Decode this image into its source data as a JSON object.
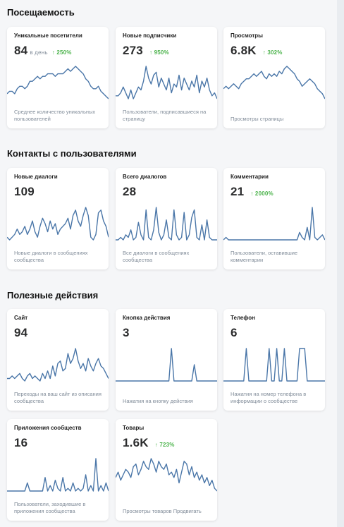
{
  "sections": [
    {
      "title": "Посещаемость"
    },
    {
      "title": "Контакты с пользователями"
    },
    {
      "title": "Полезные действия"
    }
  ],
  "line_color": "#4a76a8",
  "change_color": "#4bb34b",
  "cards": [
    {
      "title": "Уникальные посетители",
      "value": "84",
      "unit": "в день",
      "change": "↑ 250%",
      "desc": "Среднее количество уникальных пользователей",
      "series": [
        3,
        4,
        4,
        3,
        5,
        6,
        6,
        5,
        6,
        8,
        8,
        9,
        10,
        9,
        10,
        10,
        11,
        11,
        11,
        10,
        11,
        11,
        11,
        12,
        13,
        12,
        13,
        14,
        13,
        12,
        11,
        9,
        8,
        6,
        5,
        5,
        6,
        4,
        3,
        2,
        1
      ]
    },
    {
      "title": "Новые подписчики",
      "value": "273",
      "unit": "",
      "change": "↑ 950%",
      "desc": "Пользователи, подписавшиеся на страницу",
      "series": [
        2,
        2,
        3,
        5,
        3,
        1,
        4,
        1,
        3,
        5,
        4,
        7,
        12,
        8,
        6,
        9,
        10,
        5,
        8,
        6,
        4,
        8,
        3,
        6,
        5,
        9,
        4,
        8,
        6,
        4,
        7,
        5,
        9,
        3,
        7,
        5,
        8,
        4,
        2,
        3,
        1
      ]
    },
    {
      "title": "Просмотры",
      "value": "6.8K",
      "unit": "",
      "change": "↑ 302%",
      "desc": "Просмотры страницы",
      "series": [
        5,
        6,
        5,
        6,
        7,
        6,
        5,
        7,
        8,
        9,
        9,
        10,
        11,
        10,
        11,
        12,
        10,
        9,
        11,
        10,
        11,
        10,
        12,
        11,
        13,
        14,
        13,
        12,
        11,
        9,
        8,
        6,
        7,
        8,
        9,
        8,
        7,
        5,
        4,
        3,
        1
      ]
    },
    {
      "title": "Новые диалоги",
      "value": "109",
      "unit": "",
      "change": "",
      "desc": "Новые диалоги в сообщениях сообщества",
      "series": [
        2,
        1,
        2,
        3,
        5,
        3,
        4,
        6,
        3,
        5,
        8,
        4,
        2,
        6,
        9,
        7,
        4,
        8,
        5,
        7,
        3,
        5,
        6,
        7,
        9,
        5,
        10,
        12,
        8,
        6,
        10,
        13,
        10,
        2,
        1,
        3,
        11,
        12,
        8,
        6,
        2
      ]
    },
    {
      "title": "Всего диалогов",
      "value": "28",
      "unit": "",
      "change": "",
      "desc": "Все диалоги в сообщениях сообщества",
      "series": [
        1,
        1,
        2,
        1,
        3,
        2,
        5,
        1,
        2,
        8,
        3,
        1,
        13,
        2,
        1,
        5,
        14,
        4,
        1,
        3,
        9,
        2,
        1,
        13,
        3,
        1,
        2,
        12,
        1,
        3,
        10,
        13,
        2,
        1,
        7,
        1,
        9,
        2,
        1,
        1,
        1
      ]
    },
    {
      "title": "Комментарии",
      "value": "21",
      "unit": "",
      "change": "↑ 2000%",
      "desc": "Пользователи, оставившие комментарии",
      "series": [
        1,
        2,
        1,
        1,
        1,
        1,
        1,
        1,
        1,
        1,
        1,
        1,
        1,
        1,
        1,
        1,
        1,
        1,
        1,
        1,
        1,
        1,
        1,
        1,
        1,
        1,
        1,
        1,
        1,
        1,
        4,
        2,
        1,
        6,
        1,
        14,
        2,
        1,
        2,
        3,
        1
      ]
    },
    {
      "title": "Сайт",
      "value": "94",
      "unit": "",
      "change": "",
      "desc": "Переходы на ваш сайт из описания сообщества",
      "series": [
        2,
        2,
        3,
        2,
        3,
        4,
        2,
        1,
        3,
        4,
        2,
        3,
        2,
        1,
        4,
        2,
        5,
        2,
        7,
        3,
        8,
        9,
        5,
        6,
        12,
        8,
        10,
        14,
        9,
        6,
        8,
        5,
        10,
        7,
        5,
        8,
        10,
        7,
        6,
        4,
        2
      ]
    },
    {
      "title": "Кнопка действия",
      "value": "3",
      "unit": "",
      "change": "",
      "desc": "Нажатия на кнопку действия",
      "series": [
        0,
        0,
        0,
        0,
        0,
        0,
        0,
        0,
        0,
        0,
        0,
        0,
        0,
        0,
        0,
        0,
        0,
        0,
        0,
        0,
        0,
        0,
        10,
        0,
        0,
        0,
        0,
        0,
        0,
        0,
        0,
        5,
        0,
        0,
        0,
        0,
        0,
        0,
        0,
        0,
        0
      ]
    },
    {
      "title": "Телефон",
      "value": "6",
      "unit": "",
      "change": "",
      "desc": "Нажатия на номер телефона в информации о сообществе",
      "series": [
        0,
        0,
        0,
        0,
        0,
        0,
        0,
        0,
        0,
        10,
        0,
        0,
        0,
        0,
        0,
        0,
        0,
        0,
        10,
        0,
        0,
        10,
        0,
        0,
        10,
        0,
        0,
        0,
        0,
        0,
        10,
        10,
        10,
        0,
        0,
        0,
        0,
        0,
        0,
        0,
        0
      ]
    },
    {
      "title": "Приложения сообществ",
      "value": "16",
      "unit": "",
      "change": "",
      "desc": "Пользователи, заходившие в приложения сообщества",
      "series": [
        1,
        1,
        1,
        1,
        1,
        1,
        1,
        1,
        4,
        1,
        1,
        1,
        1,
        1,
        1,
        6,
        1,
        3,
        1,
        5,
        2,
        1,
        6,
        1,
        2,
        1,
        4,
        1,
        2,
        1,
        2,
        7,
        1,
        3,
        1,
        13,
        1,
        3,
        1,
        4,
        1
      ]
    },
    {
      "title": "Товары",
      "value": "1.6K",
      "unit": "",
      "change": "↑ 723%",
      "desc": "Просмотры товаров Продвигать",
      "series": [
        6,
        8,
        5,
        7,
        9,
        8,
        6,
        10,
        11,
        7,
        9,
        12,
        10,
        9,
        13,
        11,
        8,
        12,
        10,
        9,
        11,
        7,
        8,
        6,
        9,
        4,
        8,
        12,
        11,
        7,
        10,
        6,
        8,
        5,
        7,
        4,
        6,
        3,
        5,
        2,
        1
      ]
    }
  ]
}
